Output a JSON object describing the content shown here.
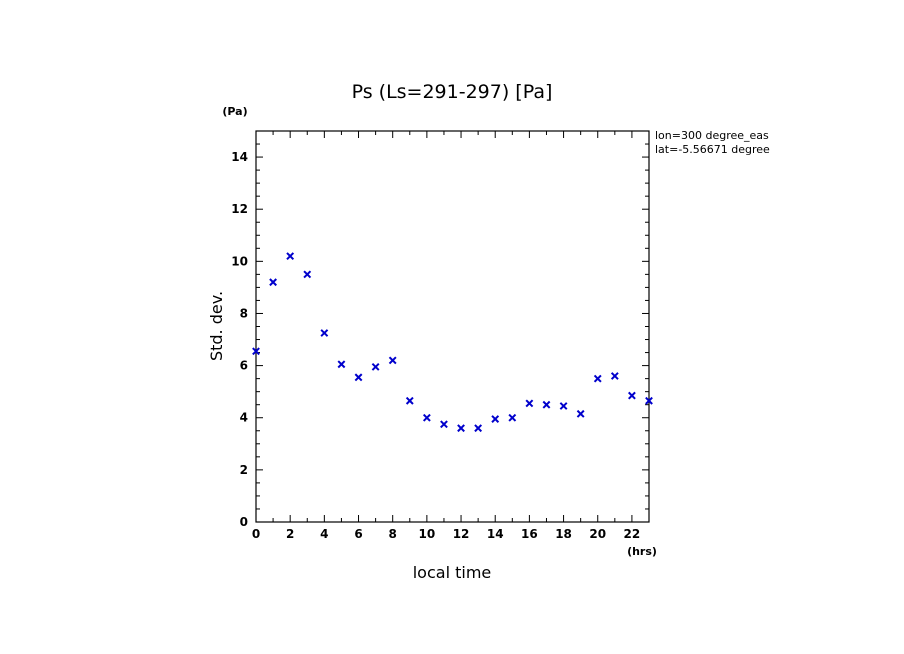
{
  "chart_data": {
    "type": "scatter",
    "title": "Ps (Ls=291-297) [Pa]",
    "xlabel": "local time",
    "ylabel": "Std. dev.",
    "x_unit": "(hrs)",
    "y_unit": "(Pa)",
    "xlim": [
      0,
      23
    ],
    "ylim": [
      0,
      15
    ],
    "x_ticks": [
      0,
      2,
      4,
      6,
      8,
      10,
      12,
      14,
      16,
      18,
      20,
      22
    ],
    "y_ticks": [
      0,
      2,
      4,
      6,
      8,
      10,
      12,
      14
    ],
    "x_minor_step": 1,
    "y_minor_step": 0.5,
    "marker": "x",
    "color": "#0000cc",
    "annotations": [
      "lon=300 degree_eas",
      "lat=-5.56671 degree"
    ],
    "series": [
      {
        "x": [
          0,
          1,
          2,
          3,
          4,
          5,
          6,
          7,
          8,
          9,
          10,
          11,
          12,
          13,
          14,
          15,
          16,
          17,
          18,
          19,
          20,
          21,
          22,
          23
        ],
        "y": [
          6.55,
          9.2,
          10.2,
          9.5,
          7.25,
          6.05,
          5.55,
          5.95,
          6.2,
          4.65,
          4.0,
          3.75,
          3.6,
          3.6,
          3.95,
          4.0,
          4.55,
          4.5,
          4.45,
          4.15,
          5.5,
          5.6,
          4.85,
          4.65
        ]
      }
    ]
  }
}
